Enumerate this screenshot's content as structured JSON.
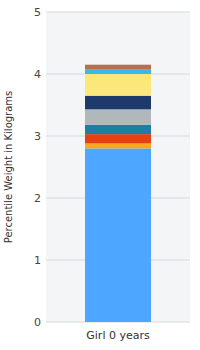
{
  "chart_data": {
    "type": "bar",
    "stacked": true,
    "categories": [
      "Girl 0 years"
    ],
    "series": [
      {
        "color": "#4da6ff",
        "values": [
          2.8
        ]
      },
      {
        "color": "#f5a820",
        "values": [
          0.08
        ]
      },
      {
        "color": "#e84010",
        "values": [
          0.15
        ]
      },
      {
        "color": "#1a7fa0",
        "values": [
          0.15
        ]
      },
      {
        "color": "#b0b8bc",
        "values": [
          0.25
        ]
      },
      {
        "color": "#1e3a6b",
        "values": [
          0.22
        ]
      },
      {
        "color": "#fce87a",
        "values": [
          0.35
        ]
      },
      {
        "color": "#3ab8e8",
        "values": [
          0.07
        ]
      },
      {
        "color": "#b5714e",
        "values": [
          0.08
        ]
      }
    ],
    "y_label": "Percentile Weight in Kilograms",
    "ylim": [
      0,
      5
    ],
    "yticks": [
      0,
      1,
      2,
      3,
      4,
      5
    ],
    "grid": true
  }
}
